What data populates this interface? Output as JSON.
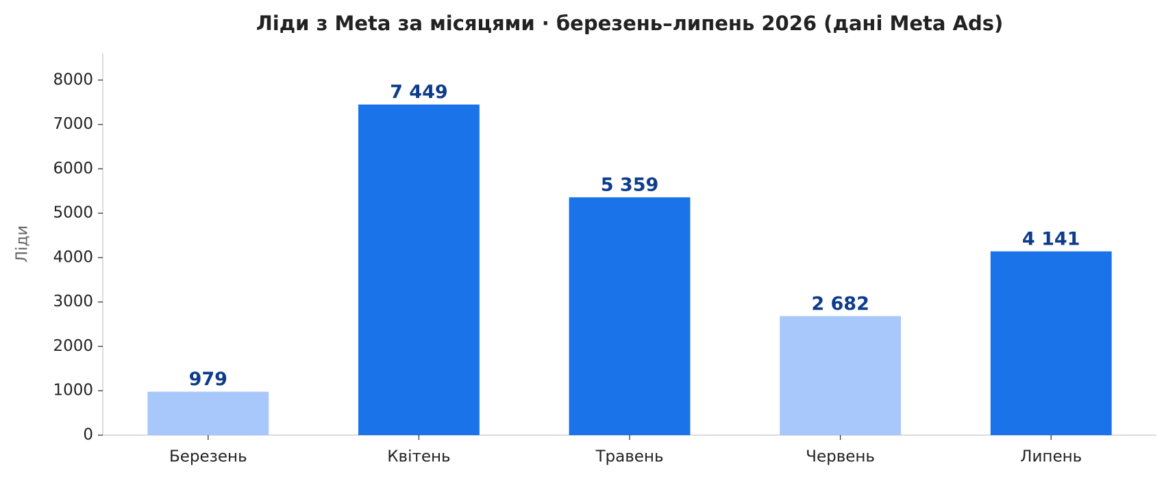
{
  "chart_data": {
    "type": "bar",
    "title": "Ліди з Meta за місяцями · березень–липень 2026 (дані Meta Ads)",
    "ylabel": "Ліди",
    "categories": [
      "Березень",
      "Квітень",
      "Травень",
      "Червень",
      "Липень"
    ],
    "values": [
      979,
      7449,
      5359,
      2682,
      4141
    ],
    "value_labels": [
      "979",
      "7 449",
      "5 359",
      "2 682",
      "4 141"
    ],
    "colors": [
      "#a8c7fa",
      "#1a73e8",
      "#1a73e8",
      "#a8c7fa",
      "#1a73e8"
    ],
    "label_color": "#0d3c8c",
    "ylim": [
      0,
      8600
    ],
    "yticks": [
      0,
      1000,
      2000,
      3000,
      4000,
      5000,
      6000,
      7000,
      8000
    ],
    "grid": false
  }
}
